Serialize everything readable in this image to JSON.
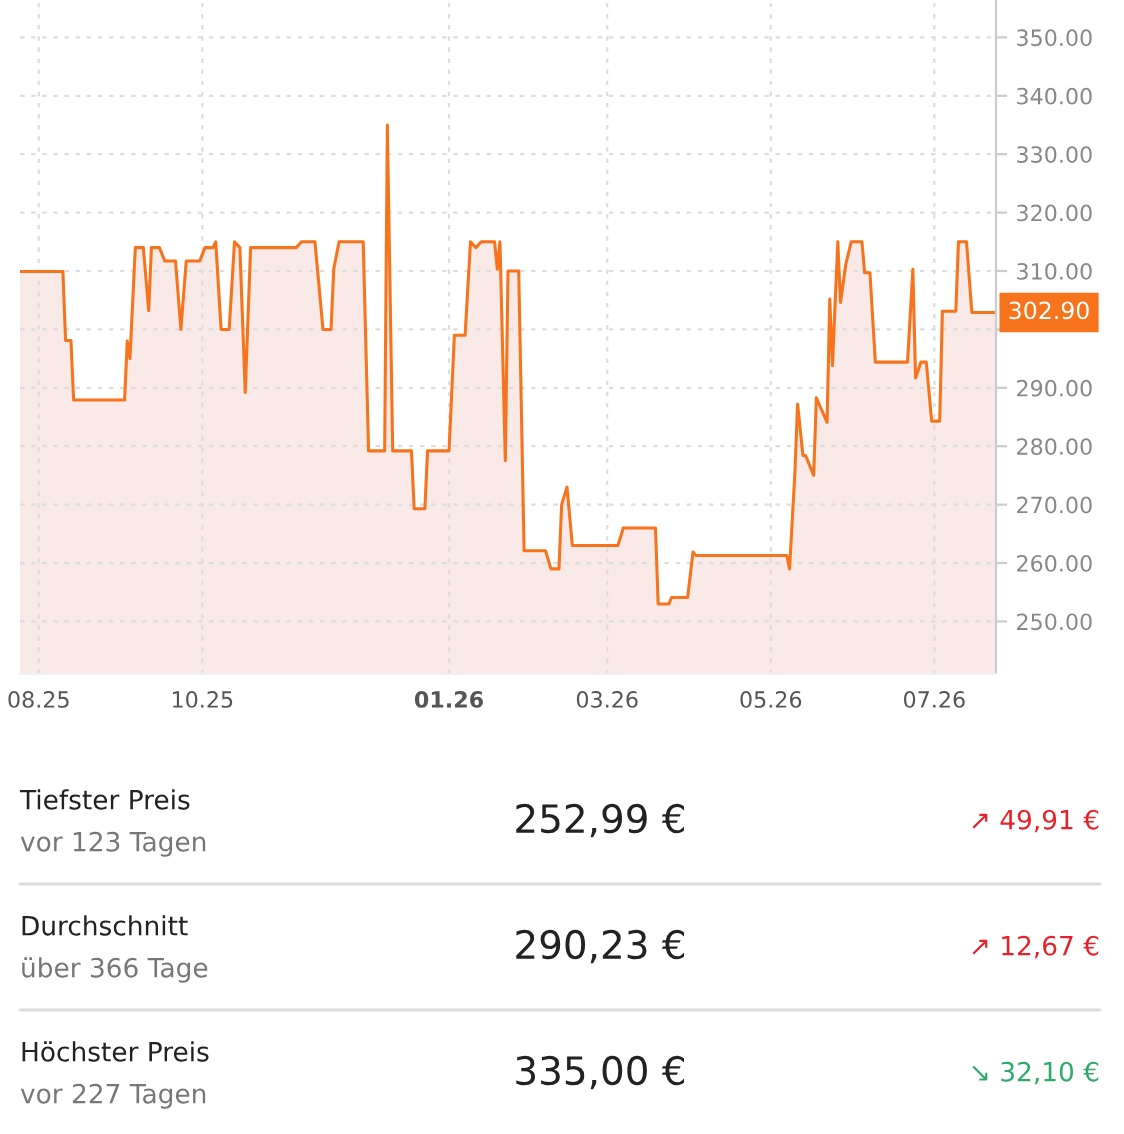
{
  "chart_data": [
    {
      "type": "area",
      "xlim": [
        "2025-07-25",
        "2026-07-24"
      ],
      "ylim": [
        241,
        356.4
      ],
      "xticks": [
        {
          "value": "2025-08-01",
          "label": "08.25"
        },
        {
          "value": "2025-10-01",
          "label": "10.25"
        },
        {
          "value": "2026-01-01",
          "label": "01.26"
        },
        {
          "value": "2026-03-01",
          "label": "03.26"
        },
        {
          "value": "2026-05-01",
          "label": "05.26"
        },
        {
          "value": "2026-07-01",
          "label": "07.26"
        }
      ],
      "yticks": [
        {
          "value": 250,
          "label": "250.00"
        },
        {
          "value": 260,
          "label": "260.00"
        },
        {
          "value": 270,
          "label": "270.00"
        },
        {
          "value": 280,
          "label": "280.00"
        },
        {
          "value": 290,
          "label": "290.00"
        },
        {
          "value": 300,
          "label": null
        },
        {
          "value": 310,
          "label": "310.00"
        },
        {
          "value": 320,
          "label": "320.00"
        },
        {
          "value": 330,
          "label": "330.00"
        },
        {
          "value": 340,
          "label": "340.00"
        },
        {
          "value": 350,
          "label": "350.00"
        }
      ],
      "grid": true,
      "line_style": "solid",
      "marker": "none",
      "series": [
        {
          "color": "#f7731c",
          "x": [
            "2025-07-25",
            "2025-08-10",
            "2025-08-11",
            "2025-08-13",
            "2025-08-14",
            "2025-09-02",
            "2025-09-03",
            "2025-09-04",
            "2025-09-06",
            "2025-09-09",
            "2025-09-11",
            "2025-09-12",
            "2025-09-15",
            "2025-09-17",
            "2025-09-21",
            "2025-09-23",
            "2025-09-25",
            "2025-09-30",
            "2025-10-02",
            "2025-10-05",
            "2025-10-06",
            "2025-10-08",
            "2025-10-11",
            "2025-10-13",
            "2025-10-15",
            "2025-10-17",
            "2025-10-19",
            "2025-11-05",
            "2025-11-07",
            "2025-11-12",
            "2025-11-15",
            "2025-11-18",
            "2025-11-19",
            "2025-11-21",
            "2025-11-30",
            "2025-12-02",
            "2025-12-08",
            "2025-12-09",
            "2025-12-11",
            "2025-12-18",
            "2025-12-19",
            "2025-12-23",
            "2025-12-24",
            "2026-01-01",
            "2026-01-03",
            "2026-01-07",
            "2026-01-09",
            "2026-01-11",
            "2026-01-13",
            "2026-01-18",
            "2026-01-19",
            "2026-01-20",
            "2026-01-22",
            "2026-01-23",
            "2026-01-27",
            "2026-01-29",
            "2026-02-06",
            "2026-02-08",
            "2026-02-11",
            "2026-02-12",
            "2026-02-14",
            "2026-02-16",
            "2026-03-05",
            "2026-03-07",
            "2026-03-19",
            "2026-03-20",
            "2026-03-24",
            "2026-03-25",
            "2026-03-31",
            "2026-04-02",
            "2026-04-03",
            "2026-05-07",
            "2026-05-08",
            "2026-05-10",
            "2026-05-11",
            "2026-05-13",
            "2026-05-14",
            "2026-05-17",
            "2026-05-18",
            "2026-05-22",
            "2026-05-23",
            "2026-05-24",
            "2026-05-26",
            "2026-05-27",
            "2026-05-29",
            "2026-05-31",
            "2026-06-04",
            "2026-06-05",
            "2026-06-07",
            "2026-06-09",
            "2026-06-21",
            "2026-06-23",
            "2026-06-24",
            "2026-06-26",
            "2026-06-28",
            "2026-06-30",
            "2026-07-03",
            "2026-07-04",
            "2026-07-09",
            "2026-07-10",
            "2026-07-13",
            "2026-07-15",
            "2026-07-24"
          ],
          "values": [
            309.9,
            309.9,
            298.1,
            298.1,
            287.9,
            287.9,
            298,
            295,
            314,
            314,
            303.2,
            314,
            314,
            311.7,
            311.7,
            300,
            311.7,
            311.7,
            314,
            314,
            315,
            300,
            300,
            315,
            314,
            289.2,
            314,
            314,
            315,
            315,
            300,
            300,
            310.3,
            315,
            315,
            279.2,
            279.2,
            335,
            279.2,
            279.2,
            269.3,
            269.3,
            279.2,
            279.2,
            299,
            299,
            315,
            314,
            315,
            315,
            310.3,
            315,
            277.5,
            310,
            310,
            262.1,
            262.1,
            259,
            259,
            270,
            273,
            263,
            263,
            266,
            266,
            253,
            253,
            254.1,
            254.1,
            261.9,
            261.3,
            261.3,
            259,
            275.5,
            287.2,
            278.4,
            278.4,
            275,
            288.3,
            284.1,
            305.2,
            293.8,
            315,
            304.6,
            311.2,
            315,
            315,
            309.7,
            309.7,
            294.4,
            294.4,
            310.3,
            291.7,
            294.4,
            294.4,
            284.3,
            284.3,
            303.1,
            303.1,
            315,
            315,
            302.9,
            302.9
          ]
        }
      ],
      "annotations": [
        {
          "text": "302.90",
          "x": "2026-07-24",
          "y": 302.9
        }
      ]
    },
    {
      "type": "other",
      "annotations": [
        "Tiefster Preis",
        "vor 123 Tagen",
        "252,99 €",
        "↗ 49,91 €",
        "Durchschnitt",
        "über 366 Tage",
        "290,23 €",
        "↗ 12,67 €",
        "Höchster Preis",
        "vor 227 Tagen",
        "335,00 €",
        "↘ 32,10 €"
      ],
      "colors": [
        "#222222",
        "#777777",
        "#222222",
        "#e8202a",
        "#222222",
        "#777777",
        "#222222",
        "#e8202a",
        "#222222",
        "#777777",
        "#222222",
        "#2eaa6a"
      ]
    }
  ]
}
